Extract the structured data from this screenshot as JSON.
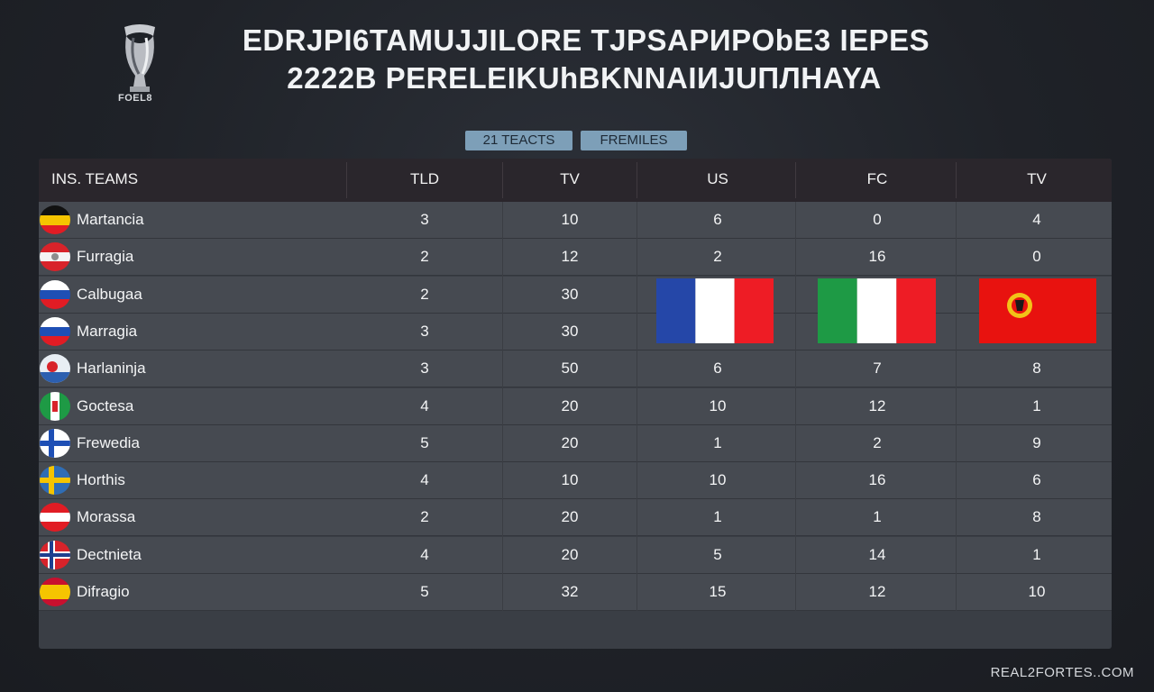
{
  "logo": {
    "text": "FOEL8"
  },
  "title": {
    "line1": "EDRJPI6TAMUJJILORE TJPSAPИPObE3 IEPES",
    "line2": "2222B PERELEIKUhBKNNAIИJUПЛHAYA"
  },
  "tabs": [
    {
      "label": "21 TEACTS"
    },
    {
      "label": "FREMILES"
    }
  ],
  "table": {
    "headers": [
      "INS. TEAMS",
      "TLD",
      "TV",
      "US",
      "FC",
      "TV"
    ],
    "rows": [
      {
        "team": "Martancia",
        "flag": "black-yellow-red-flag-icon",
        "tld": "3",
        "tv": "10",
        "us": "6",
        "fc": "0",
        "tv2": "4"
      },
      {
        "team": "Furragia",
        "flag": "red-white-crest-flag-icon",
        "tld": "2",
        "tv": "12",
        "us": "2",
        "fc": "16",
        "tv2": "0"
      },
      {
        "team": "Calbugaa",
        "flag": "white-blue-red-flag-icon",
        "tld": "2",
        "tv": "30",
        "us": "",
        "fc": "",
        "tv2": ""
      },
      {
        "team": "Marragia",
        "flag": "white-blue-red-flag-icon",
        "tld": "3",
        "tv": "30",
        "us": "",
        "fc": "",
        "tv2": ""
      },
      {
        "team": "Harlaninja",
        "flag": "crest-flag-icon",
        "tld": "3",
        "tv": "50",
        "us": "6",
        "fc": "7",
        "tv2": "8"
      },
      {
        "team": "Goctesa",
        "flag": "green-white-red-flag-icon",
        "tld": "4",
        "tv": "20",
        "us": "10",
        "fc": "12",
        "tv2": "1"
      },
      {
        "team": "Frewedia",
        "flag": "white-blue-cross-flag-icon",
        "tld": "5",
        "tv": "20",
        "us": "1",
        "fc": "2",
        "tv2": "9"
      },
      {
        "team": "Horthis",
        "flag": "blue-yellow-cross-flag-icon",
        "tld": "4",
        "tv": "10",
        "us": "10",
        "fc": "16",
        "tv2": "6"
      },
      {
        "team": "Morassa",
        "flag": "red-white-red-flag-icon",
        "tld": "2",
        "tv": "20",
        "us": "1",
        "fc": "1",
        "tv2": "8"
      },
      {
        "team": "Dectnieta",
        "flag": "red-blue-cross-flag-icon",
        "tld": "4",
        "tv": "20",
        "us": "5",
        "fc": "14",
        "tv2": "1"
      },
      {
        "team": "Difragio",
        "flag": "red-yellow-red-flag-icon",
        "tld": "5",
        "tv": "32",
        "us": "15",
        "fc": "12",
        "tv2": "10"
      }
    ]
  },
  "flag_overlays": [
    {
      "name": "french-flag-icon",
      "colors": [
        "#2547a8",
        "#ffffff",
        "#ee1c25"
      ]
    },
    {
      "name": "italian-flag-icon",
      "colors": [
        "#1e9a45",
        "#ffffff",
        "#ee1c25"
      ]
    },
    {
      "name": "red-crest-flag-icon",
      "colors": [
        "#e8120f",
        "#f2c318"
      ]
    }
  ],
  "footer": {
    "text": "REAL2FORTES..COM"
  },
  "colors": {
    "background": "#1f2228",
    "panel": "#3a3e45",
    "row": "#464a51",
    "header": "#2a262c",
    "tab": "#7d9fb8"
  }
}
